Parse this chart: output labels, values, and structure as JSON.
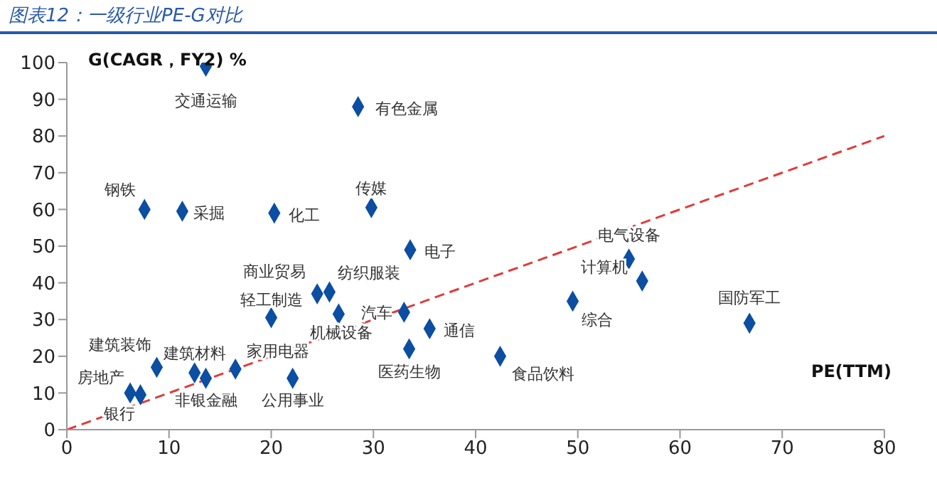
{
  "chart_data": {
    "type": "scatter",
    "title": "图表12：一级行业PE-G对比",
    "xlabel": "PE(TTM)",
    "ylabel": "G(CAGR，FY2) %",
    "xlim": [
      0,
      80
    ],
    "ylim": [
      0,
      100
    ],
    "xticks": [
      0,
      10,
      20,
      30,
      40,
      50,
      60,
      70,
      80
    ],
    "yticks": [
      0,
      10,
      20,
      30,
      40,
      50,
      60,
      70,
      80,
      90,
      100
    ],
    "grid": false,
    "legend": false,
    "marker": "diamond",
    "series": [
      {
        "color": "#0b4ea2",
        "x": [
          13.6,
          28.5,
          7.6,
          11.3,
          20.3,
          29.8,
          33.6,
          24.5,
          25.7,
          20.0,
          26.6,
          33.0,
          33.5,
          35.5,
          42.4,
          56.3,
          49.5,
          55.0,
          66.8,
          22.1,
          16.5,
          12.5,
          13.6,
          8.8,
          6.2,
          7.2
        ],
        "values": [
          99,
          88,
          60,
          59.5,
          59,
          60.5,
          49,
          37,
          37.5,
          30.5,
          31.5,
          32,
          22,
          27.5,
          20,
          40.5,
          35,
          46.5,
          29,
          14,
          16.5,
          15.5,
          14,
          17,
          10,
          9.5
        ]
      },
      {
        "type": "line",
        "color": "#e03b3b",
        "line_style": "dashed",
        "marker": "none",
        "x": [
          0,
          80
        ],
        "values": [
          0,
          80
        ]
      }
    ],
    "annotations": [
      {
        "text": "交通运输",
        "x": 13.6,
        "y": 99
      },
      {
        "text": "有色金属",
        "x": 28.5,
        "y": 88
      },
      {
        "text": "钢铁",
        "x": 7.6,
        "y": 60
      },
      {
        "text": "采掘",
        "x": 11.3,
        "y": 59.5
      },
      {
        "text": "化工",
        "x": 20.3,
        "y": 59
      },
      {
        "text": "传媒",
        "x": 29.8,
        "y": 60.5
      },
      {
        "text": "电子",
        "x": 33.6,
        "y": 49
      },
      {
        "text": "商业贸易",
        "x": 24.5,
        "y": 37
      },
      {
        "text": "纺织服装",
        "x": 25.7,
        "y": 37.5
      },
      {
        "text": "轻工制造",
        "x": 20.0,
        "y": 30.5
      },
      {
        "text": "机械设备",
        "x": 26.6,
        "y": 31.5
      },
      {
        "text": "汽车",
        "x": 33.0,
        "y": 32
      },
      {
        "text": "医药生物",
        "x": 33.5,
        "y": 22
      },
      {
        "text": "通信",
        "x": 35.5,
        "y": 27.5
      },
      {
        "text": "食品饮料",
        "x": 42.4,
        "y": 20
      },
      {
        "text": "计算机",
        "x": 56.3,
        "y": 40.5
      },
      {
        "text": "综合",
        "x": 49.5,
        "y": 35
      },
      {
        "text": "电气设备",
        "x": 55.0,
        "y": 46.5
      },
      {
        "text": "国防军工",
        "x": 66.8,
        "y": 29
      },
      {
        "text": "公用事业",
        "x": 22.1,
        "y": 14
      },
      {
        "text": "家用电器",
        "x": 16.5,
        "y": 16.5
      },
      {
        "text": "建筑材料",
        "x": 12.5,
        "y": 15.5
      },
      {
        "text": "非银金融",
        "x": 13.6,
        "y": 14
      },
      {
        "text": "建筑装饰",
        "x": 8.8,
        "y": 17
      },
      {
        "text": "房地产",
        "x": 6.2,
        "y": 10
      },
      {
        "text": "银行",
        "x": 7.2,
        "y": 9.5
      }
    ]
  }
}
